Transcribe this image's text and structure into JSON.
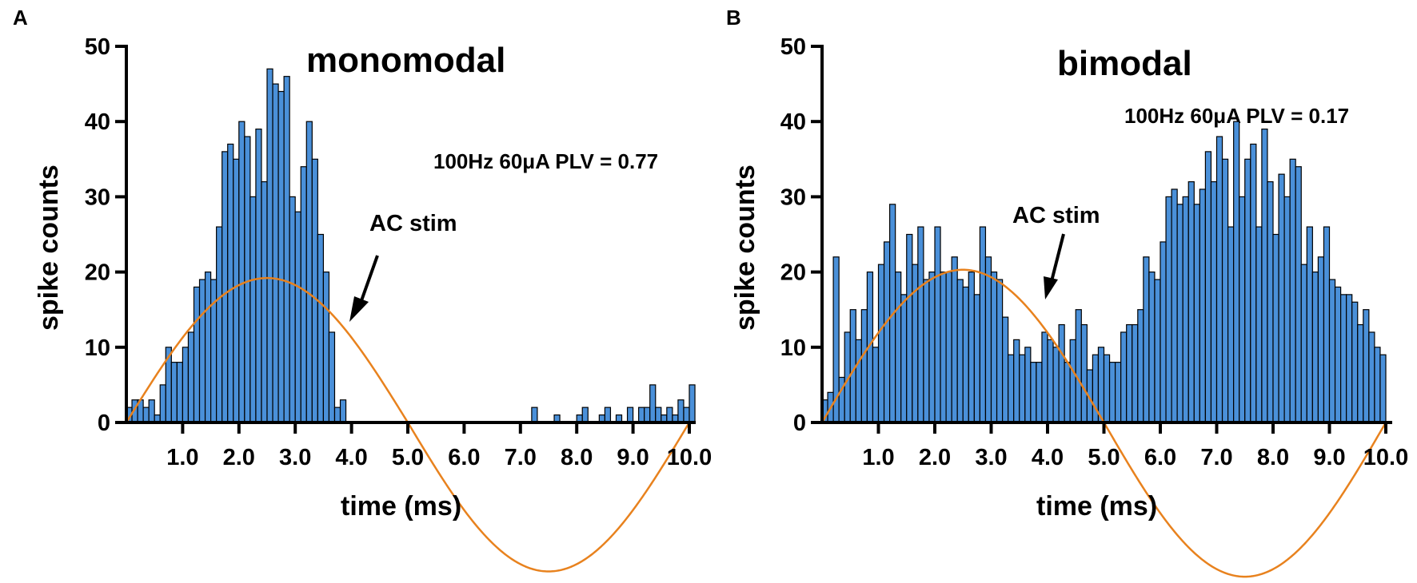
{
  "chart_data": [
    {
      "type": "bar",
      "panel": "A",
      "title": "monomodal",
      "xlabel": "time (ms)",
      "ylabel": "spike counts",
      "xlim": [
        0,
        10
      ],
      "ylim": [
        0,
        50
      ],
      "xticks": [
        1.0,
        2.0,
        3.0,
        4.0,
        5.0,
        6.0,
        7.0,
        8.0,
        9.0,
        10.0
      ],
      "xtick_labels": [
        "1.0",
        "2.0",
        "3.0",
        "4.0",
        "5.0",
        "6.0",
        "7.0",
        "8.0",
        "9.0",
        "10.0"
      ],
      "yticks": [
        0,
        10,
        20,
        30,
        40,
        50
      ],
      "ytick_labels": [
        "0",
        "10",
        "20",
        "30",
        "40",
        "50"
      ],
      "bin_width_ms": 0.1,
      "values": [
        2,
        3,
        3,
        2,
        3,
        1,
        5,
        10,
        8,
        8,
        10,
        12,
        18,
        19,
        20,
        19,
        26,
        36,
        37,
        35,
        40,
        38,
        30,
        39,
        32,
        47,
        45,
        44,
        46,
        30,
        28,
        34,
        40,
        35,
        25,
        20,
        12,
        2,
        3,
        0,
        0,
        0,
        0,
        0,
        0,
        0,
        0,
        0,
        0,
        0,
        0,
        0,
        0,
        0,
        0,
        0,
        0,
        0,
        0,
        0,
        0,
        0,
        0,
        0,
        0,
        0,
        0,
        0,
        0,
        0,
        0,
        0,
        2,
        0,
        0,
        0,
        1,
        0,
        0,
        0,
        1,
        2,
        0,
        0,
        1,
        2,
        0,
        1,
        0,
        2,
        0,
        2,
        2,
        5,
        2,
        1,
        2,
        1,
        3,
        2,
        5
      ],
      "annotation": "100Hz 60μA PLV = 0.77",
      "stim_label": "AC stim",
      "stim_wave": {
        "period_ms": 10,
        "peak_count": 19.2,
        "trough_count": -19.8
      },
      "colors": {
        "bar": "#4a90d9",
        "bar_edge": "#000000",
        "stim": "#e8821e"
      }
    },
    {
      "type": "bar",
      "panel": "B",
      "title": "bimodal",
      "xlabel": "time (ms)",
      "ylabel": "spike counts",
      "xlim": [
        0,
        10
      ],
      "ylim": [
        0,
        50
      ],
      "xticks": [
        1.0,
        2.0,
        3.0,
        4.0,
        5.0,
        6.0,
        7.0,
        8.0,
        9.0,
        10.0
      ],
      "xtick_labels": [
        "1.0",
        "2.0",
        "3.0",
        "4.0",
        "5.0",
        "6.0",
        "7.0",
        "8.0",
        "9.0",
        "10.0"
      ],
      "yticks": [
        0,
        10,
        20,
        30,
        40,
        50
      ],
      "ytick_labels": [
        "0",
        "10",
        "20",
        "30",
        "40",
        "50"
      ],
      "bin_width_ms": 0.1,
      "values": [
        3,
        4,
        22,
        6,
        12,
        15,
        11,
        15,
        20,
        10,
        21,
        24,
        29,
        20,
        17,
        25,
        21,
        26,
        19,
        20,
        26,
        20,
        20,
        22,
        19,
        18,
        20,
        17,
        26,
        22,
        20,
        19,
        14,
        9,
        11,
        9,
        10,
        8,
        8,
        12,
        11,
        10,
        13,
        8,
        11,
        15,
        13,
        7,
        9,
        10,
        9,
        8,
        8,
        12,
        13,
        13,
        15,
        22,
        20,
        19,
        24,
        30,
        31,
        29,
        30,
        32,
        29,
        31,
        36,
        32,
        38,
        35,
        26,
        40,
        30,
        35,
        37,
        26,
        39,
        32,
        25,
        33,
        30,
        35,
        34,
        21,
        26,
        20,
        22,
        26,
        19,
        18,
        17,
        17,
        16,
        13,
        15,
        12,
        10,
        9
      ],
      "annotation": "100Hz 60μA PLV = 0.17",
      "stim_label": "AC stim",
      "stim_wave": {
        "period_ms": 10,
        "peak_count": 20.3,
        "trough_count": -20.5
      },
      "colors": {
        "bar": "#4a90d9",
        "bar_edge": "#000000",
        "stim": "#e8821e"
      }
    }
  ]
}
